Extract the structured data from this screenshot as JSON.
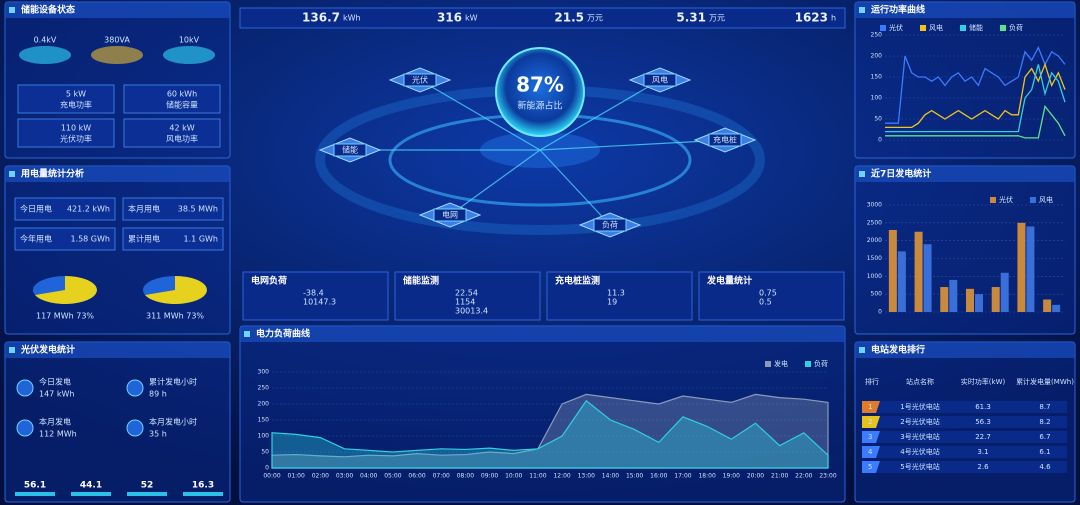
{
  "panels": {
    "status": {
      "title": "储能设备状态",
      "icons": [
        "0.4kV",
        "380VA",
        "10kV"
      ],
      "metrics": [
        {
          "value": "5 kW",
          "label": "充电功率"
        },
        {
          "value": "60 kWh",
          "label": "储能容量"
        },
        {
          "value": "110 kW",
          "label": "光伏功率"
        },
        {
          "value": "42 kW",
          "label": "风电功率"
        }
      ]
    },
    "usage": {
      "title": "用电量统计分析",
      "boxes": [
        {
          "label": "今日用电",
          "value": "421.2 kWh"
        },
        {
          "label": "本月用电",
          "value": "38.5 MWh"
        },
        {
          "label": "今年用电",
          "value": "1.58 GWh"
        },
        {
          "label": "累计用电",
          "value": "1.1 GWh"
        }
      ],
      "donuts": [
        "117 MWh 73%",
        "311 MWh 73%"
      ]
    },
    "solar": {
      "title": "光伏发电统计",
      "items": [
        {
          "label": "今日发电",
          "value": "147 kWh"
        },
        {
          "label": "累计发电小时",
          "value": "89 h"
        },
        {
          "label": "本月发电",
          "value": "112 MWh"
        },
        {
          "label": "本月发电小时",
          "value": "35 h"
        }
      ],
      "bottom": [
        "56.1",
        "44.1",
        "52",
        "16.3"
      ]
    }
  },
  "kpis": [
    {
      "value": "136.7",
      "unit": "kWh"
    },
    {
      "value": "316",
      "unit": "kW"
    },
    {
      "value": "21.5",
      "unit": "万元"
    },
    {
      "value": "5.31",
      "unit": "万元"
    },
    {
      "value": "1623",
      "unit": "h"
    }
  ],
  "center": {
    "percent": "87%",
    "label": "新能源占比",
    "nodes": [
      "光伏",
      "风电",
      "储能",
      "充电桩",
      "电网",
      "负荷"
    ]
  },
  "info_boxes": [
    {
      "title": "电网负荷",
      "lines": [
        "-38.4",
        "10147.3"
      ]
    },
    {
      "title": "储能监测",
      "lines": [
        "22.54",
        "1154",
        "30013.4"
      ]
    },
    {
      "title": "充电桩监测",
      "lines": [
        "11.3",
        "19"
      ]
    },
    {
      "title": "发电量统计",
      "lines": [
        "0.75",
        "0.5"
      ]
    }
  ],
  "load_chart": {
    "type": "area",
    "title": "电力负荷曲线",
    "categories": [
      "00:00",
      "01:00",
      "02:00",
      "03:00",
      "04:00",
      "05:00",
      "06:00",
      "07:00",
      "08:00",
      "09:00",
      "10:00",
      "11:00",
      "12:00",
      "13:00",
      "14:00",
      "15:00",
      "16:00",
      "17:00",
      "18:00",
      "19:00",
      "20:00",
      "21:00",
      "22:00",
      "23:00"
    ],
    "ylim": [
      0,
      300
    ],
    "yticks": [
      0,
      50,
      100,
      150,
      200,
      250,
      300
    ],
    "series": [
      {
        "name": "发电",
        "color": "#8a9bb8",
        "values": [
          40,
          42,
          38,
          35,
          40,
          38,
          45,
          40,
          42,
          50,
          45,
          60,
          200,
          230,
          220,
          210,
          200,
          225,
          215,
          205,
          230,
          220,
          215,
          205
        ]
      },
      {
        "name": "负荷",
        "color": "#2fd0e0",
        "values": [
          110,
          105,
          95,
          60,
          55,
          50,
          55,
          60,
          58,
          62,
          55,
          60,
          100,
          210,
          150,
          120,
          80,
          160,
          130,
          90,
          140,
          70,
          110,
          40
        ]
      }
    ]
  },
  "power_curve": {
    "type": "line",
    "title": "运行功率曲线",
    "ylim": [
      0,
      250
    ],
    "yticks": [
      0,
      50,
      100,
      150,
      200,
      250
    ],
    "series": [
      {
        "name": "光伏",
        "color": "#3a7bff",
        "values": [
          40,
          40,
          40,
          200,
          160,
          150,
          150,
          140,
          150,
          130,
          150,
          160,
          140,
          150,
          130,
          170,
          160,
          150,
          130,
          140,
          150,
          210,
          190,
          220,
          180,
          210,
          200,
          180
        ]
      },
      {
        "name": "风电",
        "color": "#f0c419",
        "values": [
          30,
          30,
          30,
          30,
          30,
          40,
          60,
          70,
          60,
          50,
          60,
          70,
          60,
          50,
          60,
          70,
          60,
          50,
          70,
          60,
          60,
          150,
          170,
          140,
          180,
          130,
          160,
          120
        ]
      },
      {
        "name": "储能",
        "color": "#2fd0e0",
        "values": [
          20,
          20,
          20,
          20,
          20,
          20,
          20,
          20,
          20,
          20,
          20,
          20,
          20,
          20,
          20,
          20,
          20,
          20,
          20,
          20,
          20,
          100,
          120,
          180,
          110,
          160,
          140,
          90
        ]
      },
      {
        "name": "负荷",
        "color": "#5be38a",
        "values": [
          10,
          10,
          10,
          10,
          10,
          10,
          10,
          10,
          10,
          10,
          10,
          10,
          10,
          10,
          10,
          10,
          10,
          10,
          10,
          10,
          10,
          5,
          5,
          5,
          80,
          60,
          40,
          10
        ]
      }
    ]
  },
  "bar_chart": {
    "type": "bar",
    "title": "近7日发电统计",
    "ylim": [
      0,
      3000
    ],
    "yticks": [
      0,
      500,
      1000,
      1500,
      2000,
      2500,
      3000
    ],
    "series": [
      {
        "name": "光伏",
        "color": "#c98a3e",
        "values": [
          2300,
          2250,
          700,
          650,
          700,
          2500,
          350
        ]
      },
      {
        "name": "风电",
        "color": "#3a6ed8",
        "values": [
          1700,
          1900,
          900,
          500,
          1100,
          2400,
          200
        ]
      }
    ]
  },
  "ranking": {
    "title": "电站发电排行",
    "headers": [
      "排行",
      "站点名称",
      "实时功率(kW)",
      "累计发电量(MWh)"
    ],
    "rows": [
      [
        "1",
        "1号光伏电站",
        "61.3",
        "8.7"
      ],
      [
        "2",
        "2号光伏电站",
        "56.3",
        "8.2"
      ],
      [
        "3",
        "3号光伏电站",
        "22.7",
        "6.7"
      ],
      [
        "4",
        "4号光伏电站",
        "3.1",
        "6.1"
      ],
      [
        "5",
        "5号光伏电站",
        "2.6",
        "4.6"
      ]
    ]
  }
}
